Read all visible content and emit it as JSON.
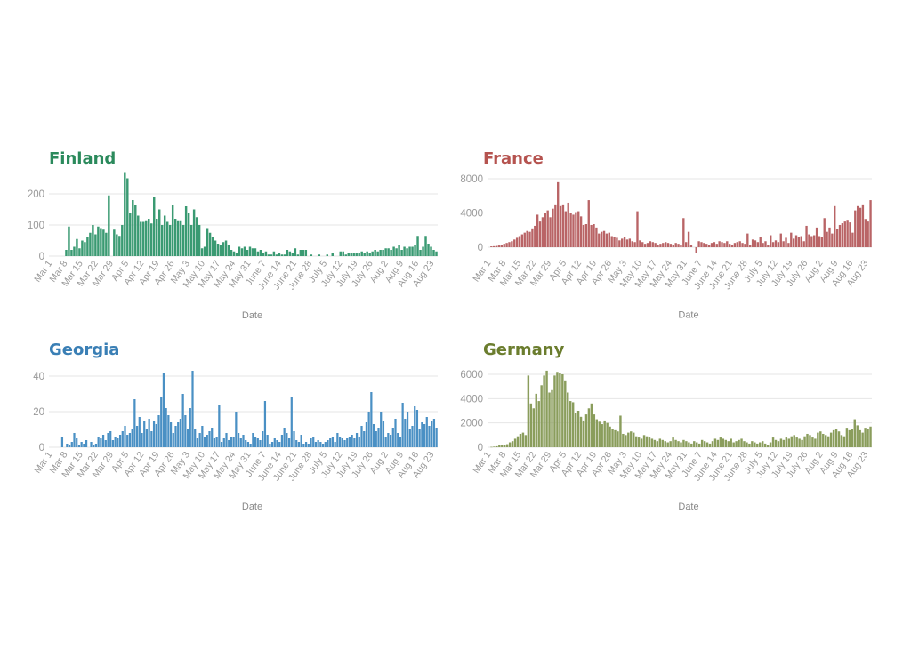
{
  "chart_data": [
    {
      "type": "bar",
      "title": "Finland",
      "xlabel": "Date",
      "ylabel": "",
      "color": "#3a9a72",
      "title_color": "#2b8a5c",
      "ylim": [
        0,
        280
      ],
      "yticks": [
        0,
        100,
        200
      ],
      "xticks": [
        "Mar 1",
        "Mar 8",
        "Mar 15",
        "Mar 22",
        "Mar 29",
        "Apr 5",
        "Apr 12",
        "Apr 19",
        "Apr 26",
        "May 3",
        "May 10",
        "May 17",
        "May 24",
        "May 31",
        "June 7",
        "June 14",
        "June 21",
        "June 28",
        "July 5",
        "July 12",
        "July 19",
        "July 26",
        "Aug 2",
        "Aug 9",
        "Aug 16",
        "Aug 23"
      ],
      "values": [
        0,
        0,
        0,
        0,
        0,
        0,
        20,
        95,
        20,
        30,
        55,
        25,
        50,
        45,
        60,
        75,
        100,
        70,
        95,
        90,
        85,
        75,
        195,
        0,
        85,
        70,
        65,
        100,
        270,
        250,
        140,
        180,
        165,
        130,
        110,
        110,
        115,
        120,
        105,
        190,
        120,
        150,
        100,
        130,
        110,
        100,
        165,
        120,
        115,
        115,
        100,
        160,
        140,
        100,
        150,
        125,
        100,
        25,
        30,
        90,
        75,
        60,
        50,
        40,
        35,
        45,
        50,
        35,
        20,
        15,
        10,
        30,
        25,
        30,
        20,
        30,
        25,
        25,
        15,
        20,
        10,
        15,
        5,
        5,
        15,
        5,
        10,
        5,
        5,
        20,
        15,
        10,
        25,
        5,
        20,
        20,
        20,
        0,
        5,
        0,
        0,
        5,
        0,
        0,
        5,
        0,
        10,
        0,
        0,
        15,
        15,
        5,
        10,
        10,
        10,
        10,
        10,
        15,
        10,
        15,
        10,
        15,
        20,
        15,
        20,
        20,
        25,
        25,
        20,
        30,
        25,
        35,
        20,
        30,
        25,
        30,
        30,
        35,
        65,
        20,
        30,
        65,
        40,
        30,
        20,
        15
      ]
    },
    {
      "type": "bar",
      "title": "France",
      "xlabel": "Date",
      "ylabel": "",
      "color": "#b96466",
      "title_color": "#b5534f",
      "ylim": [
        -1000,
        8000
      ],
      "yticks": [
        0,
        4000,
        8000
      ],
      "xticks": [
        "Mar 1",
        "Mar 8",
        "Mar 15",
        "Mar 22",
        "Mar 29",
        "Apr 5",
        "Apr 12",
        "Apr 19",
        "Apr 26",
        "May 3",
        "May 10",
        "May 17",
        "May 24",
        "May 31",
        "June 7",
        "June 14",
        "June 21",
        "June 28",
        "July 5",
        "July 12",
        "July 19",
        "July 26",
        "Aug 2",
        "Aug 9",
        "Aug 16",
        "Aug 23"
      ],
      "values": [
        0,
        100,
        120,
        150,
        200,
        300,
        400,
        500,
        600,
        700,
        900,
        1100,
        1300,
        1500,
        1700,
        1900,
        1800,
        2200,
        2500,
        3800,
        3000,
        3500,
        4000,
        4300,
        3500,
        4500,
        5000,
        7600,
        4800,
        5000,
        4200,
        5200,
        4000,
        3800,
        4100,
        4200,
        3600,
        2600,
        2700,
        5500,
        2600,
        2700,
        2300,
        1600,
        1800,
        1900,
        1600,
        1700,
        1300,
        1200,
        1100,
        800,
        1000,
        1200,
        900,
        1000,
        700,
        600,
        4200,
        800,
        600,
        400,
        500,
        700,
        600,
        500,
        300,
        400,
        500,
        600,
        500,
        400,
        300,
        500,
        400,
        300,
        3400,
        600,
        1800,
        300,
        0,
        -700,
        700,
        600,
        500,
        400,
        300,
        500,
        600,
        400,
        700,
        600,
        500,
        700,
        400,
        300,
        500,
        600,
        700,
        500,
        400,
        1600,
        300,
        900,
        800,
        600,
        1200,
        500,
        700,
        300,
        1400,
        600,
        800,
        600,
        1600,
        700,
        1100,
        500,
        1700,
        1000,
        1400,
        1200,
        1300,
        700,
        2500,
        1500,
        1300,
        1400,
        2300,
        1300,
        1200,
        3400,
        1800,
        2300,
        1600,
        4800,
        2100,
        2600,
        2800,
        3000,
        3200,
        2900,
        1700,
        4300,
        4800,
        4600,
        5000,
        3300,
        3000,
        5500
      ]
    },
    {
      "type": "bar",
      "title": "Georgia",
      "xlabel": "Date",
      "ylabel": "",
      "color": "#4a90c4",
      "title_color": "#3a7fb5",
      "ylim": [
        0,
        44
      ],
      "yticks": [
        0,
        20,
        40
      ],
      "xticks": [
        "Mar 1",
        "Mar 8",
        "Mar 15",
        "Mar 22",
        "Mar 29",
        "Apr 5",
        "Apr 12",
        "Apr 19",
        "Apr 26",
        "May 3",
        "May 10",
        "May 17",
        "May 24",
        "May 31",
        "June 7",
        "June 14",
        "June 21",
        "June 28",
        "July 5",
        "July 12",
        "July 19",
        "July 26",
        "Aug 2",
        "Aug 9",
        "Aug 16",
        "Aug 23"
      ],
      "values": [
        0,
        0,
        0,
        0,
        0,
        6,
        0,
        2,
        1,
        3,
        8,
        5,
        1,
        3,
        2,
        4,
        0,
        3,
        1,
        2,
        6,
        5,
        7,
        4,
        8,
        9,
        4,
        6,
        5,
        7,
        9,
        12,
        7,
        8,
        10,
        27,
        12,
        17,
        8,
        15,
        10,
        16,
        9,
        15,
        13,
        18,
        28,
        42,
        22,
        18,
        14,
        8,
        12,
        14,
        16,
        30,
        18,
        10,
        22,
        43,
        10,
        5,
        8,
        12,
        6,
        7,
        9,
        11,
        5,
        6,
        24,
        3,
        5,
        8,
        4,
        6,
        6,
        20,
        8,
        5,
        7,
        4,
        3,
        2,
        8,
        6,
        5,
        4,
        9,
        26,
        7,
        2,
        3,
        5,
        4,
        3,
        7,
        11,
        8,
        5,
        28,
        9,
        4,
        3,
        7,
        2,
        3,
        2,
        5,
        6,
        3,
        4,
        3,
        2,
        3,
        4,
        5,
        6,
        3,
        8,
        6,
        5,
        4,
        5,
        6,
        7,
        5,
        8,
        6,
        12,
        9,
        14,
        20,
        31,
        13,
        9,
        11,
        20,
        15,
        6,
        8,
        7,
        11,
        16,
        8,
        6,
        25,
        16,
        20,
        10,
        12,
        23,
        21,
        10,
        14,
        13,
        17,
        12,
        15,
        16,
        11
      ]
    },
    {
      "type": "bar",
      "title": "Germany",
      "xlabel": "Date",
      "ylabel": "",
      "color": "#8a9d5c",
      "title_color": "#6b7d2e",
      "ylim": [
        0,
        6400
      ],
      "yticks": [
        0,
        2000,
        4000,
        6000
      ],
      "xticks": [
        "Mar 1",
        "Mar 8",
        "Mar 15",
        "Mar 22",
        "Mar 29",
        "Apr 5",
        "Apr 12",
        "Apr 19",
        "Apr 26",
        "May 3",
        "May 10",
        "May 17",
        "May 24",
        "May 31",
        "June 7",
        "June 14",
        "June 21",
        "June 28",
        "July 5",
        "July 12",
        "July 19",
        "July 26",
        "Aug 2",
        "Aug 9",
        "Aug 16",
        "Aug 23"
      ],
      "values": [
        0,
        30,
        50,
        80,
        150,
        200,
        150,
        250,
        400,
        500,
        700,
        900,
        1100,
        1200,
        1000,
        5900,
        3600,
        3200,
        4400,
        3800,
        5100,
        5900,
        6300,
        4500,
        4700,
        5900,
        6200,
        6100,
        6000,
        5500,
        4500,
        3800,
        3700,
        2800,
        3000,
        2500,
        2200,
        2700,
        3200,
        3600,
        2700,
        2300,
        2100,
        1900,
        2200,
        2000,
        1700,
        1500,
        1400,
        1300,
        2600,
        1100,
        1000,
        1200,
        1300,
        1200,
        900,
        800,
        700,
        1000,
        900,
        800,
        700,
        600,
        500,
        700,
        600,
        500,
        400,
        500,
        800,
        600,
        500,
        400,
        600,
        500,
        400,
        300,
        500,
        400,
        300,
        600,
        500,
        400,
        300,
        500,
        700,
        600,
        800,
        700,
        600,
        500,
        700,
        400,
        500,
        600,
        700,
        500,
        400,
        300,
        500,
        400,
        300,
        400,
        500,
        300,
        200,
        400,
        800,
        600,
        500,
        700,
        600,
        800,
        700,
        900,
        1000,
        800,
        700,
        600,
        900,
        1100,
        1000,
        800,
        700,
        1200,
        1300,
        1100,
        1000,
        900,
        1200,
        1400,
        1500,
        1300,
        1000,
        900,
        1600,
        1400,
        1500,
        2300,
        1800,
        1400,
        1200,
        1600,
        1500,
        1700
      ]
    }
  ]
}
